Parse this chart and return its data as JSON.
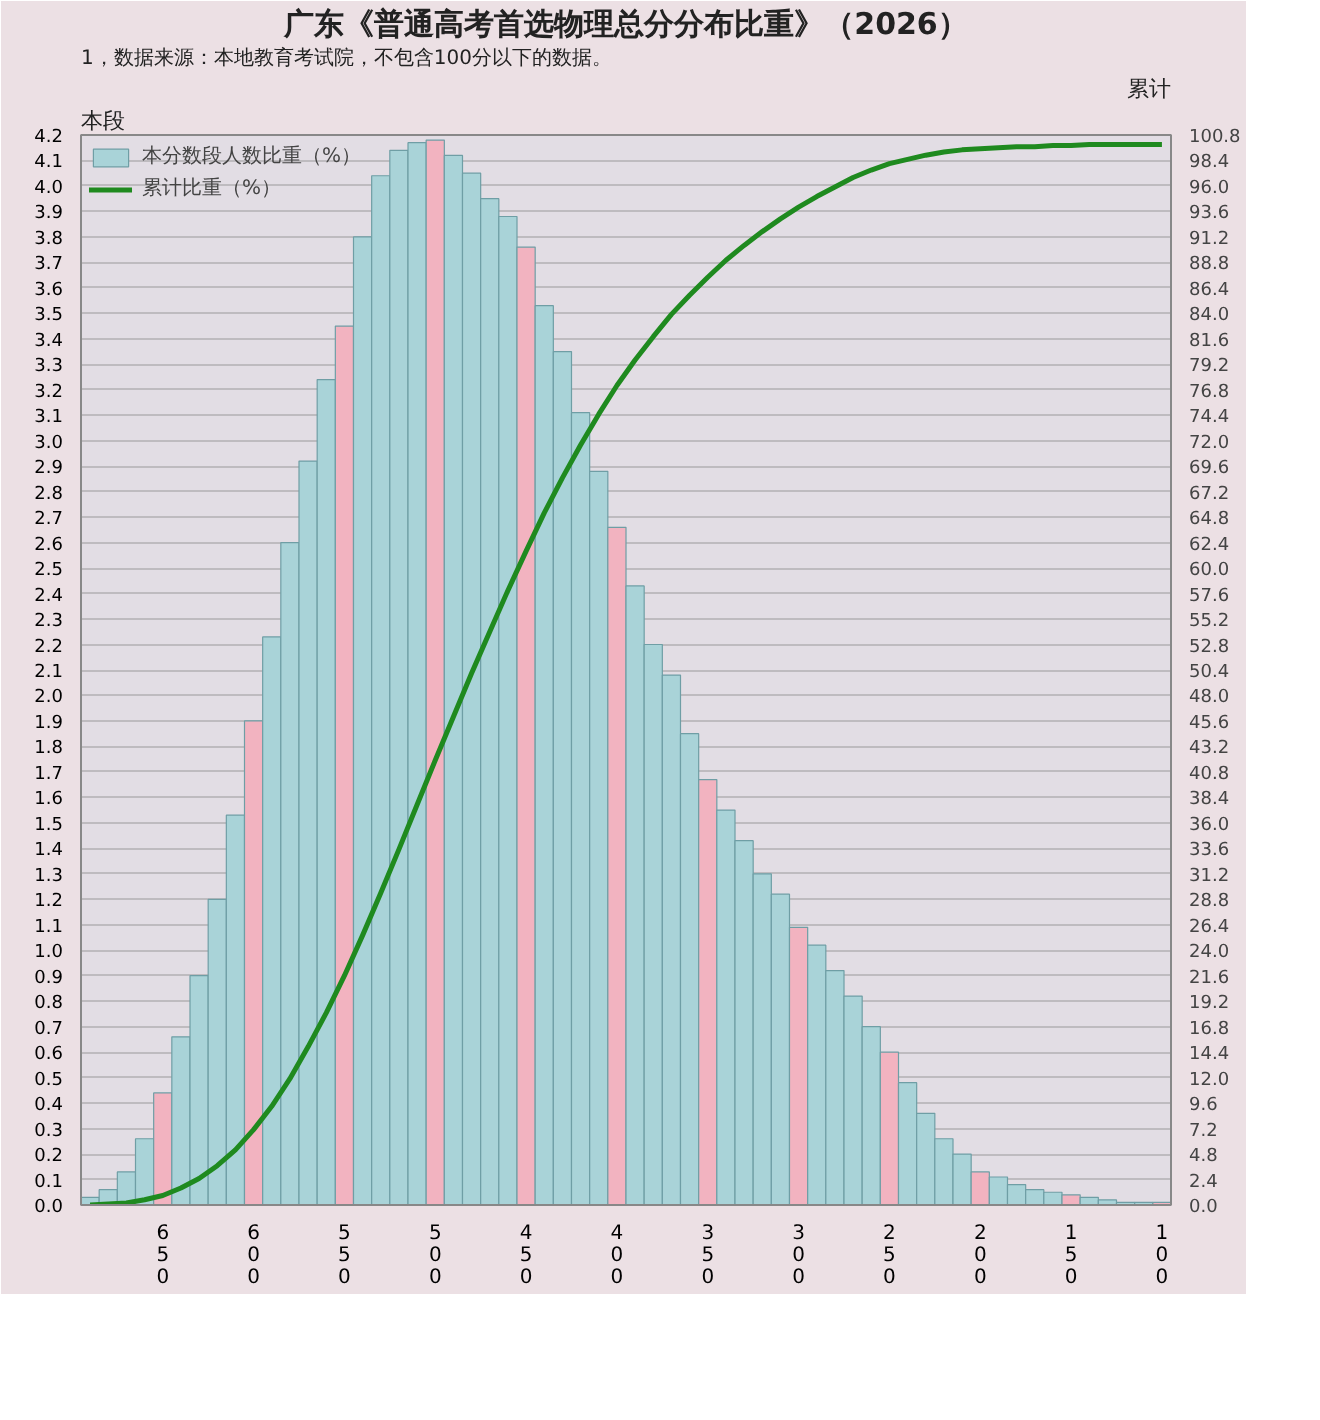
{
  "chart_data": {
    "type": "bar",
    "title": "广东《普通高考首选物理总分分布比重》（2026）",
    "annotations": [
      "1，数据来源：本地教育考试院，不包含100分以下的数据。"
    ],
    "ylabel": "本段",
    "y2label": "累计",
    "x": [
      690,
      680,
      670,
      660,
      650,
      640,
      630,
      620,
      610,
      600,
      590,
      580,
      570,
      560,
      550,
      540,
      530,
      520,
      510,
      500,
      490,
      480,
      470,
      460,
      450,
      440,
      430,
      420,
      410,
      400,
      390,
      380,
      370,
      360,
      350,
      340,
      330,
      320,
      310,
      300,
      290,
      280,
      270,
      260,
      250,
      240,
      230,
      220,
      210,
      200,
      190,
      180,
      170,
      160,
      150,
      140,
      130,
      120,
      110,
      100
    ],
    "xlim": [
      695,
      95
    ],
    "xticks": [
      650,
      600,
      550,
      500,
      450,
      400,
      350,
      300,
      250,
      200,
      150,
      100
    ],
    "ylim": [
      0,
      4.2
    ],
    "yticks": [
      {
        "value": 0,
        "label": "0.0"
      },
      0.1,
      0.2,
      0.3,
      0.4,
      0.5,
      0.6,
      0.7,
      0.8,
      0.9,
      {
        "value": 1,
        "label": "1.0"
      },
      1.1,
      1.2,
      1.3,
      1.4,
      1.5,
      1.6,
      1.7,
      1.8,
      1.9,
      {
        "value": 2,
        "label": "2.0"
      },
      2.1,
      2.2,
      2.3,
      2.4,
      2.5,
      2.6,
      2.7,
      2.8,
      2.9,
      {
        "value": 3,
        "label": "3.0"
      },
      3.1,
      3.2,
      3.3,
      3.4,
      3.5,
      3.6,
      3.7,
      3.8,
      3.9,
      {
        "value": 4,
        "label": "4.0"
      },
      4.1,
      4.2
    ],
    "y2lim": [
      0,
      100.8
    ],
    "y2ticks": [
      {
        "value": 0,
        "label": "0.0"
      },
      2.4,
      4.8,
      7.2,
      9.6,
      {
        "value": 12,
        "label": "12.0"
      },
      14.4,
      16.8,
      19.2,
      21.6,
      {
        "value": 24,
        "label": "24.0"
      },
      26.4,
      28.8,
      31.2,
      33.6,
      {
        "value": 36,
        "label": "36.0"
      },
      38.4,
      40.8,
      43.2,
      45.6,
      {
        "value": 48,
        "label": "48.0"
      },
      50.4,
      52.8,
      55.2,
      57.6,
      {
        "value": 60,
        "label": "60.0"
      },
      62.4,
      64.8,
      67.2,
      69.6,
      {
        "value": 72,
        "label": "72.0"
      },
      74.4,
      76.8,
      79.2,
      81.6,
      {
        "value": 84,
        "label": "84.0"
      },
      86.4,
      88.8,
      91.2,
      93.6,
      {
        "value": 96,
        "label": "96.0"
      },
      98.4,
      100.8
    ],
    "grid": "y",
    "legend": "top left",
    "series": [
      {
        "name": "本分数段人数比重（%）",
        "colors": [
          "#a9d3d8",
          "#a9d3d8",
          "#a9d3d8",
          "#a9d3d8",
          "#f2b3c0",
          "#a9d3d8",
          "#a9d3d8",
          "#a9d3d8",
          "#a9d3d8",
          "#f2b3c0",
          "#a9d3d8",
          "#a9d3d8",
          "#a9d3d8",
          "#a9d3d8",
          "#f2b3c0",
          "#a9d3d8",
          "#a9d3d8",
          "#a9d3d8",
          "#a9d3d8",
          "#f2b3c0",
          "#a9d3d8",
          "#a9d3d8",
          "#a9d3d8",
          "#a9d3d8",
          "#f2b3c0",
          "#a9d3d8",
          "#a9d3d8",
          "#a9d3d8",
          "#a9d3d8",
          "#f2b3c0",
          "#a9d3d8",
          "#a9d3d8",
          "#a9d3d8",
          "#a9d3d8",
          "#f2b3c0",
          "#a9d3d8",
          "#a9d3d8",
          "#a9d3d8",
          "#a9d3d8",
          "#f2b3c0",
          "#a9d3d8",
          "#a9d3d8",
          "#a9d3d8",
          "#a9d3d8",
          "#f2b3c0",
          "#a9d3d8",
          "#a9d3d8",
          "#a9d3d8",
          "#a9d3d8",
          "#f2b3c0",
          "#a9d3d8",
          "#a9d3d8",
          "#a9d3d8",
          "#a9d3d8",
          "#f2b3c0",
          "#a9d3d8",
          "#a9d3d8",
          "#a9d3d8",
          "#a9d3d8",
          "#f2b3c0"
        ],
        "values": [
          0.03,
          0.06,
          0.13,
          0.26,
          0.44,
          0.66,
          0.9,
          1.2,
          1.53,
          1.9,
          2.23,
          2.6,
          2.92,
          3.24,
          3.45,
          3.8,
          4.04,
          4.14,
          4.17,
          4.18,
          4.12,
          4.05,
          3.95,
          3.88,
          3.76,
          3.53,
          3.35,
          3.11,
          2.88,
          2.66,
          2.43,
          2.2,
          2.08,
          1.85,
          1.67,
          1.55,
          1.43,
          1.3,
          1.22,
          1.09,
          1.02,
          0.92,
          0.82,
          0.7,
          0.6,
          0.48,
          0.36,
          0.26,
          0.2,
          0.13,
          0.11,
          0.08,
          0.06,
          0.05,
          0.04,
          0.03,
          0.02,
          0.01,
          0.01,
          0.01
        ]
      },
      {
        "name": "累计比重（%）",
        "type": "line",
        "axis": "y2",
        "color": "#1f8a1f",
        "values": [
          0.0,
          0.1,
          0.2,
          0.5,
          0.9,
          1.6,
          2.5,
          3.7,
          5.2,
          7.1,
          9.3,
          11.9,
          14.9,
          18.1,
          21.6,
          25.4,
          29.4,
          33.5,
          37.7,
          41.9,
          46.0,
          50.1,
          54.0,
          57.9,
          61.6,
          65.2,
          68.5,
          71.6,
          74.5,
          77.2,
          79.6,
          81.8,
          83.9,
          85.7,
          87.4,
          89.0,
          90.4,
          91.7,
          92.9,
          94.0,
          95.0,
          95.9,
          96.8,
          97.5,
          98.1,
          98.5,
          98.9,
          99.2,
          99.4,
          99.5,
          99.6,
          99.7,
          99.7,
          99.8,
          99.8,
          99.9,
          99.9,
          99.9,
          99.9,
          99.9
        ]
      }
    ]
  }
}
